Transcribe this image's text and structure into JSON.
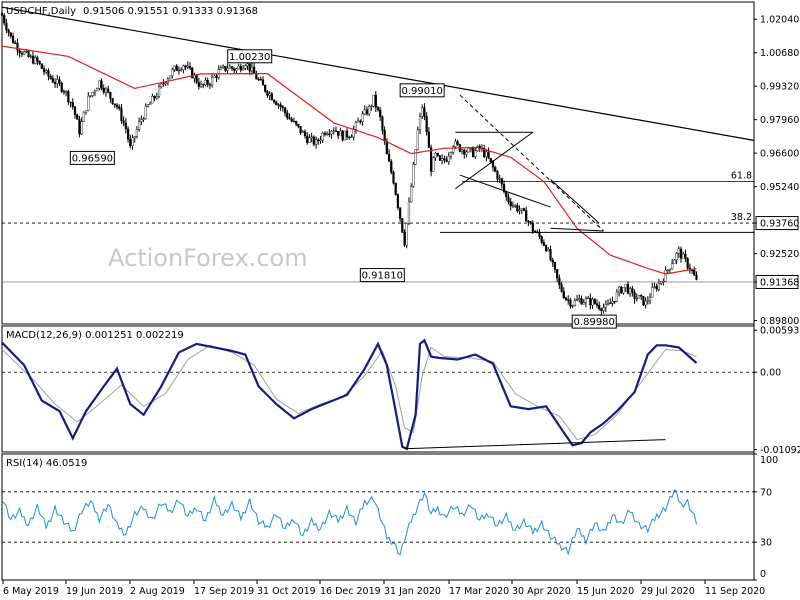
{
  "header": {
    "symbol": "USDCHF,Daily",
    "ohlc": "0.91506 0.91551 0.91333 0.91368"
  },
  "watermark": "ActionForex.com",
  "chart_data": [
    {
      "type": "candlestick",
      "title": "USDCHF,Daily",
      "ylim": [
        0.8966,
        1.0274
      ],
      "y_ticks": [
        "1.02040",
        "1.00680",
        "0.99320",
        "0.97960",
        "0.96600",
        "0.95240",
        "0.93760",
        "0.92520",
        "0.91368",
        "0.89800"
      ],
      "y_tick_values": [
        1.0204,
        1.0068,
        0.9932,
        0.9796,
        0.966,
        0.9524,
        0.9376,
        0.9252,
        0.91368,
        0.898
      ],
      "x_ticks": [
        "6 May 2019",
        "19 Jun 2019",
        "2 Aug 2019",
        "17 Sep 2019",
        "31 Oct 2019",
        "16 Dec 2019",
        "31 Jan 2020",
        "17 Mar 2020",
        "30 Apr 2020",
        "15 Jun 2020",
        "29 Jul 2020",
        "11 Sep 2020"
      ],
      "close_path": [
        [
          0,
          1.022
        ],
        [
          4,
          1.013
        ],
        [
          8,
          1.008
        ],
        [
          12,
          1.005
        ],
        [
          16,
          1.003
        ],
        [
          20,
          0.998
        ],
        [
          24,
          0.995
        ],
        [
          28,
          0.992
        ],
        [
          32,
          0.985
        ],
        [
          35,
          0.975
        ],
        [
          39,
          0.988
        ],
        [
          44,
          0.995
        ],
        [
          48,
          0.99
        ],
        [
          52,
          0.985
        ],
        [
          56,
          0.976
        ],
        [
          58,
          0.968
        ],
        [
          62,
          0.978
        ],
        [
          66,
          0.985
        ],
        [
          70,
          0.99
        ],
        [
          74,
          0.996
        ],
        [
          78,
          1.0
        ],
        [
          82,
          1.002
        ],
        [
          86,
          0.998
        ],
        [
          90,
          0.993
        ],
        [
          94,
          0.995
        ],
        [
          98,
          0.999
        ],
        [
          102,
          1.001
        ],
        [
          106,
          1.0
        ],
        [
          110,
          1.003
        ],
        [
          114,
          0.998
        ],
        [
          118,
          0.993
        ],
        [
          122,
          0.989
        ],
        [
          126,
          0.985
        ],
        [
          130,
          0.98
        ],
        [
          134,
          0.976
        ],
        [
          138,
          0.972
        ],
        [
          142,
          0.97
        ],
        [
          146,
          0.975
        ],
        [
          150,
          0.976
        ],
        [
          154,
          0.973
        ],
        [
          158,
          0.974
        ],
        [
          162,
          0.98
        ],
        [
          166,
          0.984
        ],
        [
          168,
          0.988
        ],
        [
          171,
          0.98
        ],
        [
          174,
          0.965
        ],
        [
          177,
          0.955
        ],
        [
          180,
          0.94
        ],
        [
          182,
          0.93
        ],
        [
          184,
          0.945
        ],
        [
          186,
          0.96
        ],
        [
          188,
          0.975
        ],
        [
          190,
          0.985
        ],
        [
          192,
          0.975
        ],
        [
          194,
          0.96
        ],
        [
          196,
          0.965
        ],
        [
          198,
          0.962
        ],
        [
          201,
          0.964
        ],
        [
          204,
          0.97
        ],
        [
          207,
          0.968
        ],
        [
          210,
          0.967
        ],
        [
          213,
          0.966
        ],
        [
          216,
          0.968
        ],
        [
          219,
          0.965
        ],
        [
          222,
          0.96
        ],
        [
          225,
          0.955
        ],
        [
          228,
          0.948
        ],
        [
          231,
          0.945
        ],
        [
          234,
          0.943
        ],
        [
          237,
          0.94
        ],
        [
          240,
          0.935
        ],
        [
          243,
          0.932
        ],
        [
          246,
          0.928
        ],
        [
          249,
          0.92
        ],
        [
          252,
          0.912
        ],
        [
          255,
          0.907
        ],
        [
          258,
          0.905
        ],
        [
          261,
          0.9065
        ],
        [
          264,
          0.906
        ],
        [
          267,
          0.9055
        ],
        [
          270,
          0.904
        ],
        [
          273,
          0.903
        ],
        [
          276,
          0.906
        ],
        [
          279,
          0.91
        ],
        [
          282,
          0.912
        ],
        [
          285,
          0.908
        ],
        [
          288,
          0.907
        ],
        [
          291,
          0.905
        ],
        [
          294,
          0.91
        ],
        [
          297,
          0.913
        ],
        [
          300,
          0.917
        ],
        [
          303,
          0.922
        ],
        [
          306,
          0.926
        ],
        [
          309,
          0.922
        ],
        [
          312,
          0.918
        ],
        [
          314,
          0.91368
        ]
      ],
      "ma_path": [
        [
          0,
          1.0095
        ],
        [
          30,
          1.0053
        ],
        [
          60,
          0.9923
        ],
        [
          90,
          0.9982
        ],
        [
          120,
          0.9983
        ],
        [
          150,
          0.9783
        ],
        [
          170,
          0.9723
        ],
        [
          185,
          0.9658
        ],
        [
          200,
          0.968
        ],
        [
          215,
          0.9683
        ],
        [
          230,
          0.9643
        ],
        [
          245,
          0.9545
        ],
        [
          260,
          0.9354
        ],
        [
          275,
          0.9246
        ],
        [
          290,
          0.9198
        ],
        [
          300,
          0.9169
        ],
        [
          314,
          0.9191
        ]
      ],
      "annotations": [
        {
          "label": "1.00230",
          "x": 112,
          "y": 1.0023
        },
        {
          "label": "0.96590",
          "x": 49,
          "y": 0.9659
        },
        {
          "label": "0.99010",
          "x": 199,
          "y": 0.9901
        },
        {
          "label": "0.91810",
          "x": 181,
          "y": 0.9181
        },
        {
          "label": "0.89980",
          "x": 275,
          "y": 0.8998
        }
      ],
      "fibonacci": [
        {
          "label": "61.8",
          "y": 0.9545
        },
        {
          "label": "38.2",
          "y": 0.9376
        }
      ],
      "trendlines": [
        [
          [
            0,
            1.0253
          ],
          [
            340,
            0.9712
          ]
        ],
        [
          [
            205,
            0.9516
          ],
          [
            240,
            0.9745
          ]
        ],
        [
          [
            205,
            0.9745
          ],
          [
            240,
            0.9745
          ]
        ],
        [
          [
            207,
            0.9571
          ],
          [
            248,
            0.9441
          ]
        ],
        [
          [
            207,
            0.9896
          ],
          [
            272,
            0.9344
          ]
        ],
        [
          [
            248,
            0.9553
          ],
          [
            270,
            0.9376
          ]
        ],
        [
          [
            248,
            0.9355
          ],
          [
            272,
            0.9344
          ]
        ],
        [
          [
            198,
            0.9338
          ],
          [
            340,
            0.9338
          ]
        ]
      ]
    },
    {
      "type": "line",
      "title": "MACD(12,26,9) 0.001251 0.002219",
      "ylim": [
        -0.01125,
        0.00652
      ],
      "y_ticks": [
        "0.005933",
        "0.00",
        "-0.010921"
      ],
      "y_tick_values": [
        0.005933,
        0.0,
        -0.010921
      ],
      "macd_path": [
        [
          0,
          0.0042
        ],
        [
          10,
          0.001
        ],
        [
          18,
          -0.004
        ],
        [
          26,
          -0.0055
        ],
        [
          32,
          -0.0093
        ],
        [
          38,
          -0.0055
        ],
        [
          46,
          -0.002
        ],
        [
          52,
          0.0005
        ],
        [
          58,
          -0.0045
        ],
        [
          64,
          -0.006
        ],
        [
          72,
          -0.002
        ],
        [
          80,
          0.0028
        ],
        [
          88,
          0.004
        ],
        [
          96,
          0.0035
        ],
        [
          104,
          0.003
        ],
        [
          110,
          0.0025
        ],
        [
          116,
          -0.002
        ],
        [
          124,
          -0.0045
        ],
        [
          132,
          -0.0065
        ],
        [
          140,
          -0.0052
        ],
        [
          148,
          -0.0042
        ],
        [
          156,
          -0.0032
        ],
        [
          164,
          0.0005
        ],
        [
          170,
          0.004
        ],
        [
          174,
          0.001
        ],
        [
          178,
          -0.0055
        ],
        [
          181,
          -0.0105
        ],
        [
          183,
          -0.0108
        ],
        [
          187,
          -0.006
        ],
        [
          189,
          0.004
        ],
        [
          191,
          0.0045
        ],
        [
          194,
          0.0022
        ],
        [
          198,
          0.002
        ],
        [
          206,
          0.0018
        ],
        [
          214,
          0.0025
        ],
        [
          222,
          0.0012
        ],
        [
          230,
          -0.0048
        ],
        [
          238,
          -0.0052
        ],
        [
          246,
          -0.0048
        ],
        [
          254,
          -0.0085
        ],
        [
          258,
          -0.0103
        ],
        [
          262,
          -0.01
        ],
        [
          266,
          -0.0085
        ],
        [
          272,
          -0.0072
        ],
        [
          278,
          -0.0055
        ],
        [
          286,
          -0.0028
        ],
        [
          292,
          0.0025
        ],
        [
          296,
          0.0038
        ],
        [
          300,
          0.0038
        ],
        [
          306,
          0.0035
        ],
        [
          314,
          0.0013
        ]
      ],
      "signal_path": [
        [
          0,
          0.0032
        ],
        [
          14,
          -0.001
        ],
        [
          24,
          -0.0045
        ],
        [
          34,
          -0.007
        ],
        [
          44,
          -0.0045
        ],
        [
          54,
          -0.0018
        ],
        [
          64,
          -0.0048
        ],
        [
          74,
          -0.003
        ],
        [
          84,
          0.0018
        ],
        [
          94,
          0.0038
        ],
        [
          104,
          0.0028
        ],
        [
          114,
          0.001
        ],
        [
          124,
          -0.0038
        ],
        [
          134,
          -0.0058
        ],
        [
          144,
          -0.0045
        ],
        [
          154,
          -0.0035
        ],
        [
          164,
          -0.0005
        ],
        [
          172,
          0.003
        ],
        [
          178,
          -0.002
        ],
        [
          182,
          -0.0078
        ],
        [
          186,
          -0.0085
        ],
        [
          190,
          -0.0005
        ],
        [
          194,
          0.0035
        ],
        [
          200,
          0.0022
        ],
        [
          212,
          0.002
        ],
        [
          222,
          0.0015
        ],
        [
          232,
          -0.003
        ],
        [
          242,
          -0.0048
        ],
        [
          252,
          -0.0062
        ],
        [
          260,
          -0.0095
        ],
        [
          268,
          -0.0088
        ],
        [
          278,
          -0.006
        ],
        [
          290,
          -0.001
        ],
        [
          300,
          0.0032
        ],
        [
          308,
          0.003
        ],
        [
          314,
          0.0022
        ]
      ],
      "trendlines": [
        [
          [
            182,
            -0.0108
          ],
          [
            300,
            -0.0095
          ]
        ]
      ]
    },
    {
      "type": "line",
      "title": "RSI(14) 46.0519",
      "ylim": [
        0,
        100
      ],
      "y_ticks": [
        "100",
        "70",
        "30",
        "0"
      ],
      "y_tick_values": [
        100,
        70,
        30,
        0
      ],
      "levels": [
        70,
        30
      ],
      "rsi_path": [
        [
          0,
          66
        ],
        [
          4,
          48
        ],
        [
          8,
          54
        ],
        [
          12,
          44
        ],
        [
          16,
          58
        ],
        [
          20,
          42
        ],
        [
          24,
          57
        ],
        [
          28,
          46
        ],
        [
          32,
          38
        ],
        [
          36,
          55
        ],
        [
          40,
          62
        ],
        [
          44,
          49
        ],
        [
          48,
          60
        ],
        [
          52,
          43
        ],
        [
          56,
          37
        ],
        [
          60,
          52
        ],
        [
          64,
          57
        ],
        [
          68,
          48
        ],
        [
          72,
          61
        ],
        [
          76,
          54
        ],
        [
          80,
          64
        ],
        [
          84,
          50
        ],
        [
          88,
          58
        ],
        [
          92,
          47
        ],
        [
          96,
          63
        ],
        [
          100,
          52
        ],
        [
          104,
          60
        ],
        [
          108,
          49
        ],
        [
          112,
          63
        ],
        [
          116,
          46
        ],
        [
          120,
          42
        ],
        [
          124,
          53
        ],
        [
          128,
          40
        ],
        [
          132,
          49
        ],
        [
          136,
          35
        ],
        [
          140,
          46
        ],
        [
          144,
          41
        ],
        [
          148,
          53
        ],
        [
          152,
          47
        ],
        [
          156,
          57
        ],
        [
          160,
          45
        ],
        [
          164,
          62
        ],
        [
          168,
          65
        ],
        [
          171,
          50
        ],
        [
          174,
          34
        ],
        [
          177,
          30
        ],
        [
          180,
          20
        ],
        [
          182,
          32
        ],
        [
          185,
          47
        ],
        [
          188,
          59
        ],
        [
          191,
          69
        ],
        [
          194,
          52
        ],
        [
          197,
          57
        ],
        [
          200,
          50
        ],
        [
          204,
          58
        ],
        [
          208,
          52
        ],
        [
          212,
          60
        ],
        [
          216,
          47
        ],
        [
          220,
          53
        ],
        [
          224,
          43
        ],
        [
          228,
          50
        ],
        [
          232,
          40
        ],
        [
          236,
          46
        ],
        [
          240,
          38
        ],
        [
          244,
          45
        ],
        [
          248,
          34
        ],
        [
          252,
          28
        ],
        [
          256,
          23
        ],
        [
          260,
          40
        ],
        [
          264,
          32
        ],
        [
          268,
          45
        ],
        [
          272,
          37
        ],
        [
          276,
          52
        ],
        [
          280,
          44
        ],
        [
          284,
          55
        ],
        [
          288,
          44
        ],
        [
          292,
          40
        ],
        [
          296,
          51
        ],
        [
          300,
          57
        ],
        [
          304,
          71
        ],
        [
          307,
          60
        ],
        [
          310,
          62
        ],
        [
          314,
          46
        ]
      ]
    }
  ]
}
